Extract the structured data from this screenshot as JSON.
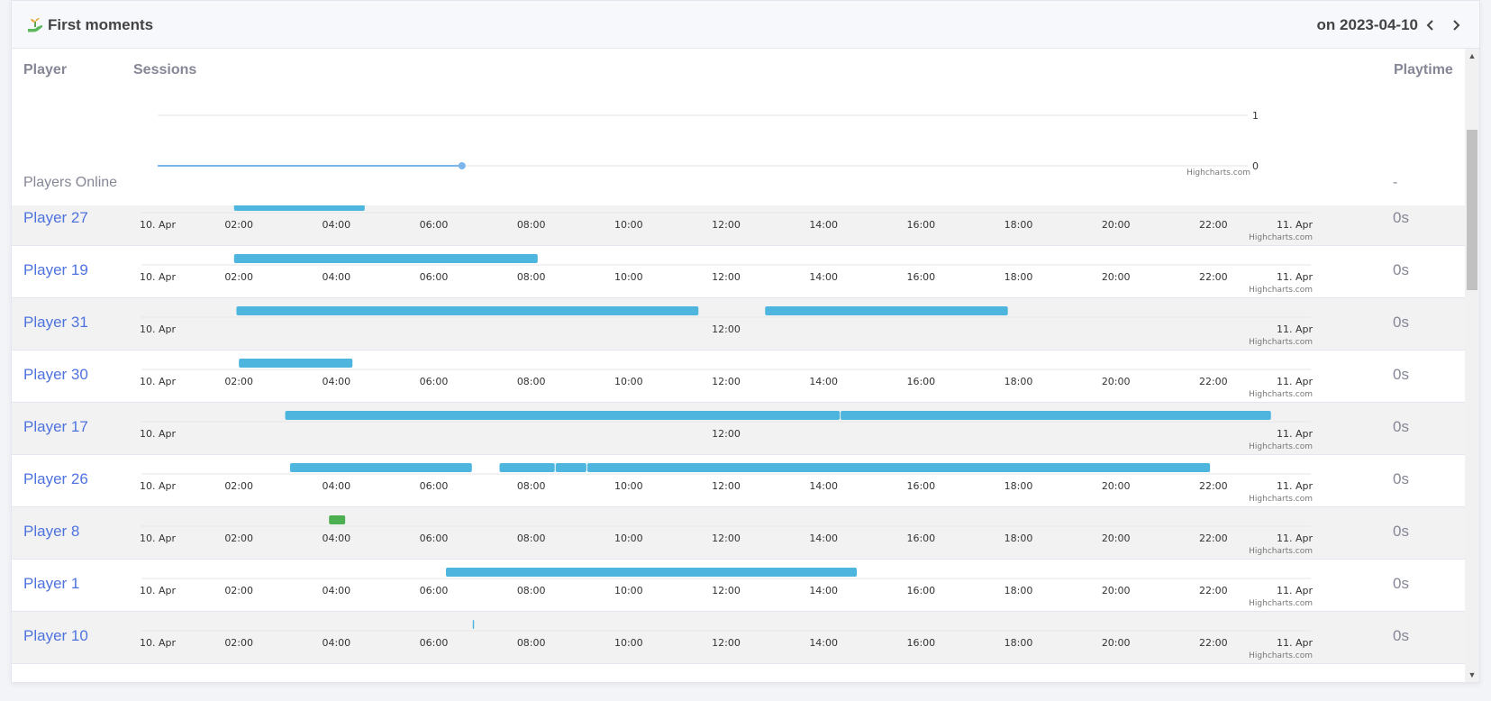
{
  "header": {
    "title": "First moments",
    "date_label": "on 2023-04-10",
    "prev_label": "previous day",
    "next_label": "next day"
  },
  "columns": {
    "player": "Player",
    "sessions": "Sessions",
    "playtime": "Playtime"
  },
  "players_online": {
    "label": "Players Online",
    "playtime": "-",
    "chart_data": {
      "type": "line",
      "title": "Players Online",
      "ylim": [
        0,
        1
      ],
      "yticks": [
        "1",
        "0"
      ],
      "point_hour": 6.7,
      "point_value": 0,
      "line_end_hour": 6.7,
      "credit": "Highcharts.com"
    }
  },
  "axis": {
    "full_ticks": [
      "10. Apr",
      "02:00",
      "04:00",
      "06:00",
      "08:00",
      "10:00",
      "12:00",
      "14:00",
      "16:00",
      "18:00",
      "20:00",
      "22:00",
      "11. Apr"
    ],
    "sparse_ticks": [
      "10. Apr",
      "12:00",
      "11. Apr"
    ],
    "credit": "Highcharts.com"
  },
  "colors": {
    "session": "#4db5de",
    "session_green": "#4caf50",
    "link": "#4e73df"
  },
  "chart_data": {
    "type": "bar",
    "title": "Sessions",
    "x_unit": "hours since 10. Apr 00:00",
    "xlim": [
      0,
      24
    ],
    "rows": [
      {
        "player": "Player 27",
        "playtime": "0s",
        "ticks": "full",
        "sessions": [
          [
            1.9,
            4.6
          ]
        ]
      },
      {
        "player": "Player 19",
        "playtime": "0s",
        "ticks": "full",
        "sessions": [
          [
            1.9,
            8.15
          ]
        ]
      },
      {
        "player": "Player 31",
        "playtime": "0s",
        "ticks": "sparse",
        "sessions": [
          [
            1.95,
            11.45
          ],
          [
            12.8,
            17.8
          ]
        ]
      },
      {
        "player": "Player 30",
        "playtime": "0s",
        "ticks": "full",
        "sessions": [
          [
            2.0,
            4.35
          ]
        ]
      },
      {
        "player": "Player 17",
        "playtime": "0s",
        "ticks": "sparse",
        "sessions": [
          [
            2.95,
            14.35
          ],
          [
            14.35,
            23.2
          ]
        ]
      },
      {
        "player": "Player 26",
        "playtime": "0s",
        "ticks": "full",
        "sessions": [
          [
            3.05,
            6.8
          ],
          [
            7.35,
            8.5
          ],
          [
            8.5,
            9.15
          ],
          [
            9.15,
            21.95
          ]
        ]
      },
      {
        "player": "Player 8",
        "playtime": "0s",
        "ticks": "full",
        "sessions": [
          [
            3.85,
            4.2
          ]
        ],
        "color": "green"
      },
      {
        "player": "Player 1",
        "playtime": "0s",
        "ticks": "full",
        "sessions": [
          [
            6.25,
            14.7
          ]
        ]
      },
      {
        "player": "Player 10",
        "playtime": "0s",
        "ticks": "full",
        "sessions": [
          [
            6.8,
            6.83
          ]
        ]
      }
    ]
  }
}
